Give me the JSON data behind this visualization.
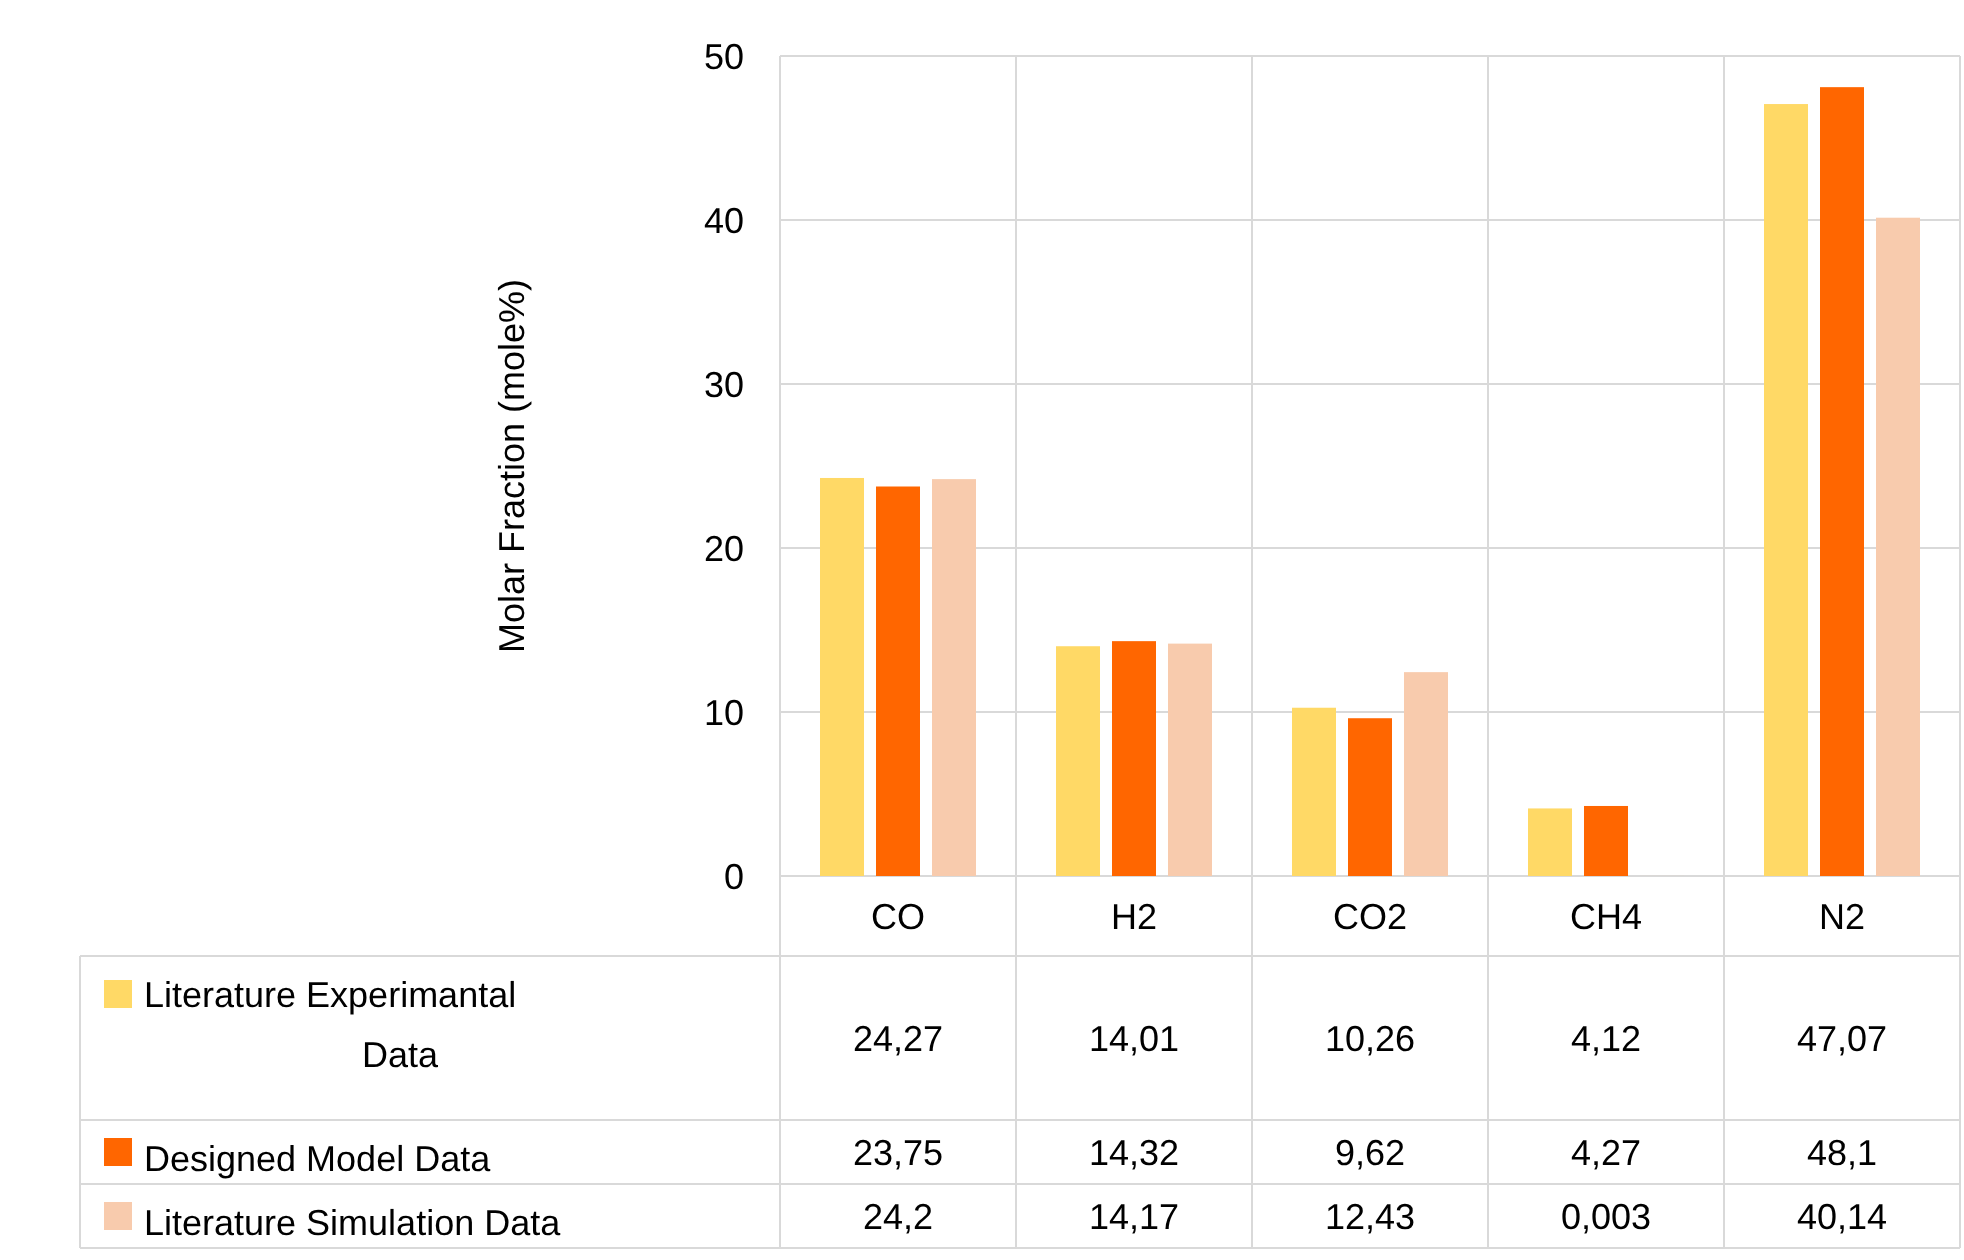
{
  "chart_data": {
    "type": "bar",
    "ylabel": "Molar Fraction (mole%)",
    "categories": [
      "CO",
      "H2",
      "CO2",
      "CH4",
      "N2"
    ],
    "series": [
      {
        "name": "Literature Experimantal Data",
        "color": "#ffd966",
        "values": [
          24.27,
          14.01,
          10.26,
          4.12,
          47.07
        ],
        "value_labels": [
          "24,27",
          "14,01",
          "10,26",
          "4,12",
          "47,07"
        ]
      },
      {
        "name": "Designed Model Data",
        "color": "#ff6600",
        "values": [
          23.75,
          14.32,
          9.62,
          4.27,
          48.1
        ],
        "value_labels": [
          "23,75",
          "14,32",
          "9,62",
          "4,27",
          "48,1"
        ]
      },
      {
        "name": "Literature Simulation Data",
        "color": "#f8cbad",
        "values": [
          24.2,
          14.17,
          12.43,
          0.003,
          40.14
        ],
        "value_labels": [
          "24,2",
          "14,17",
          "12,43",
          "0,003",
          "40,14"
        ]
      }
    ],
    "ylim": [
      0,
      50
    ],
    "yticks": [
      0,
      10,
      20,
      30,
      40,
      50
    ],
    "grid": "y",
    "legend": "bottom"
  }
}
